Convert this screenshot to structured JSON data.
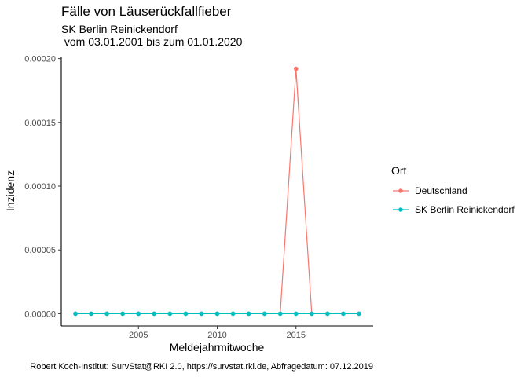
{
  "chart_data": {
    "type": "line",
    "title": "Fälle von Läuserückfallfieber",
    "subtitle_line1": "SK Berlin Reinickendorf",
    "subtitle_line2": " vom 03.01.2001 bis zum 01.01.2020",
    "xlabel": "Meldejahrmitwoche",
    "ylabel": "Inzidenz",
    "caption": "Robert Koch-Institut: SurvStat@RKI 2.0, https://survstat.rki.de, Abfragedatum: 07.12.2019",
    "legend_title": "Ort",
    "legend_position": "right",
    "grid": false,
    "xlim": [
      2000.1,
      2019.9
    ],
    "ylim": [
      -9.6e-06,
      0.0002016
    ],
    "x_ticks": [
      2005,
      2010,
      2015
    ],
    "x_tick_labels": [
      "2005",
      "2010",
      "2015"
    ],
    "y_ticks": [
      0,
      5e-05,
      0.0001,
      0.00015,
      0.0002
    ],
    "y_tick_labels": [
      "0.00000",
      "0.00005",
      "0.00010",
      "0.00015",
      "0.00020"
    ],
    "x": [
      2001,
      2002,
      2003,
      2004,
      2005,
      2006,
      2007,
      2008,
      2009,
      2010,
      2011,
      2012,
      2013,
      2014,
      2015,
      2016,
      2017,
      2018,
      2019
    ],
    "series": [
      {
        "name": "Deutschland",
        "color": "#f8766d",
        "values": [
          0,
          0,
          0,
          0,
          0,
          0,
          0,
          0,
          0,
          0,
          0,
          0,
          0,
          0,
          0.000192,
          0,
          0,
          0,
          0
        ]
      },
      {
        "name": "SK Berlin Reinickendorf",
        "color": "#00bfc4",
        "values": [
          0,
          0,
          0,
          0,
          0,
          0,
          0,
          0,
          0,
          0,
          0,
          0,
          0,
          0,
          0,
          0,
          0,
          0,
          0
        ]
      }
    ]
  }
}
